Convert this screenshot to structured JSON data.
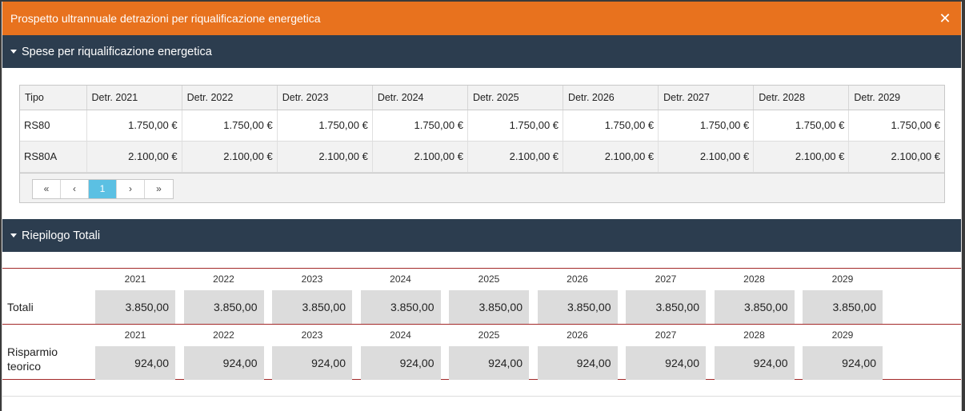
{
  "window": {
    "title": "Prospetto ultrannuale detrazioni per riqualificazione energetica",
    "close_icon": "close-icon"
  },
  "section1": {
    "title": "Spese per riqualificazione energetica",
    "columns": [
      "Tipo",
      "Detr. 2021",
      "Detr. 2022",
      "Detr. 2023",
      "Detr. 2024",
      "Detr. 2025",
      "Detr. 2026",
      "Detr. 2027",
      "Detr. 2028",
      "Detr. 2029"
    ],
    "rows": [
      [
        "RS80",
        "1.750,00 €",
        "1.750,00 €",
        "1.750,00 €",
        "1.750,00 €",
        "1.750,00 €",
        "1.750,00 €",
        "1.750,00 €",
        "1.750,00 €",
        "1.750,00 €"
      ],
      [
        "RS80A",
        "2.100,00 €",
        "2.100,00 €",
        "2.100,00 €",
        "2.100,00 €",
        "2.100,00 €",
        "2.100,00 €",
        "2.100,00 €",
        "2.100,00 €",
        "2.100,00 €"
      ]
    ],
    "pager": {
      "first": "«",
      "prev": "‹",
      "page": "1",
      "next": "›",
      "last": "»"
    }
  },
  "section2": {
    "title": "Riepilogo Totali",
    "totali": {
      "label": "Totali",
      "years": [
        "2021",
        "2022",
        "2023",
        "2024",
        "2025",
        "2026",
        "2027",
        "2028",
        "2029"
      ],
      "values": [
        "3.850,00",
        "3.850,00",
        "3.850,00",
        "3.850,00",
        "3.850,00",
        "3.850,00",
        "3.850,00",
        "3.850,00",
        "3.850,00"
      ]
    },
    "risparmio": {
      "label_line1": "Risparmio",
      "label_line2": "teorico",
      "years": [
        "2021",
        "2022",
        "2023",
        "2024",
        "2025",
        "2026",
        "2027",
        "2028",
        "2029"
      ],
      "values": [
        "924,00",
        "924,00",
        "924,00",
        "924,00",
        "924,00",
        "924,00",
        "924,00",
        "924,00",
        "924,00"
      ]
    }
  }
}
